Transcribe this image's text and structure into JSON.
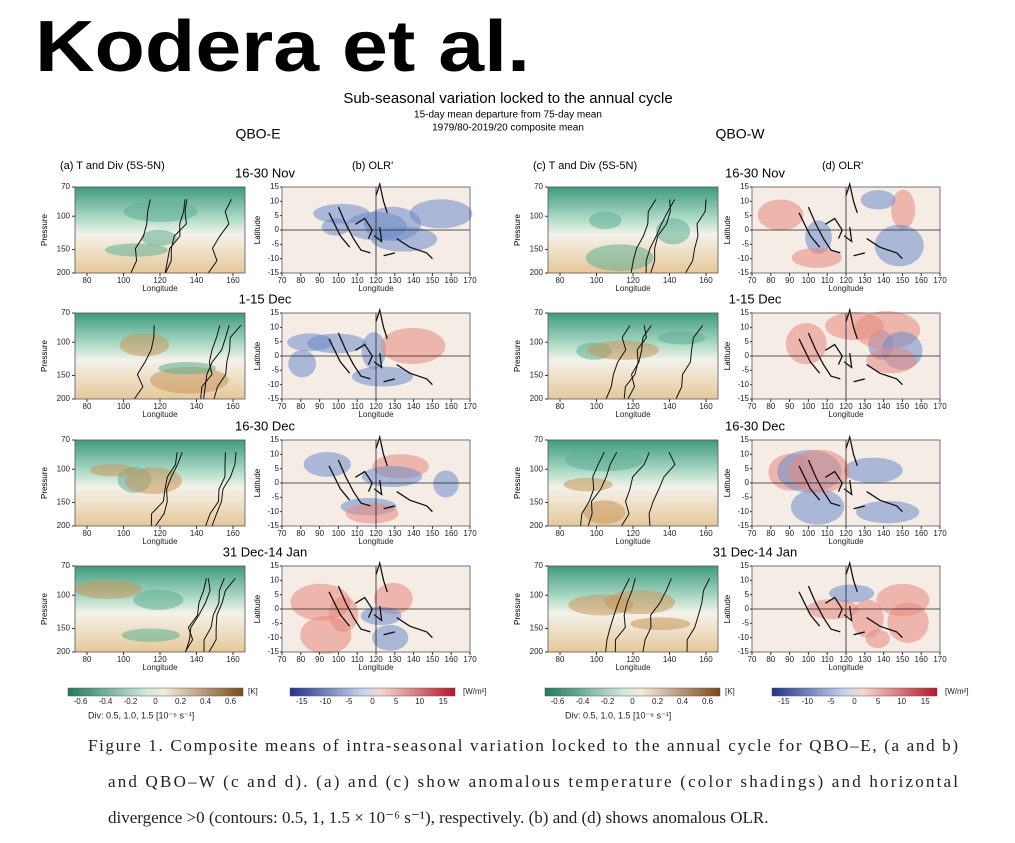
{
  "heading": "Kodera et al.",
  "figure": {
    "title": "Sub-seasonal variation locked to the annual cycle",
    "subtitle": [
      "15-day mean departure from 75-day mean",
      "1979/80-2019/20 composite mean"
    ],
    "groups": [
      {
        "name": "QBO-E",
        "panels": [
          "(a) T and Div (5S-5N)",
          "(b) OLR'"
        ]
      },
      {
        "name": "QBO-W",
        "panels": [
          "(c) T and Div (5S-5N)",
          "(d) OLR'"
        ]
      }
    ],
    "periods": [
      "16-30 Nov",
      "1-15 Dec",
      "16-30 Dec",
      "31 Dec-14 Jan"
    ],
    "t_axis": {
      "y_label": "Pressure",
      "x_label": "Longitude",
      "yticks": [
        70,
        100,
        150,
        200
      ],
      "xticks": [
        80,
        100,
        120,
        140,
        160
      ]
    },
    "olr_axis": {
      "y_label": "Latitude",
      "x_label": "Longitude",
      "yticks": [
        15,
        10,
        5,
        0,
        -5,
        -10,
        -15
      ],
      "xticks": [
        70,
        80,
        90,
        100,
        110,
        120,
        130,
        140,
        150,
        160,
        170
      ]
    },
    "t_colorbar": {
      "ticks": [
        -0.6,
        -0.4,
        -0.2,
        0,
        0.2,
        0.4,
        0.6
      ],
      "unit": "[K]",
      "note": "Div: 0.5, 1.0, 1.5 [10⁻⁶ s⁻¹]"
    },
    "olr_colorbar": {
      "ticks": [
        -15,
        -10,
        -5,
        0,
        5,
        10,
        15
      ],
      "unit": "[W/m²]"
    }
  },
  "caption": [
    "Figure 1.   Composite means of intra-seasonal variation locked to the annual cycle for QBO–E, (a and b)",
    "and QBO–W (c and d). (a) and (c) show anomalous temperature (color shadings) and horizontal",
    "divergence >0 (contours: 0.5, 1, 1.5 × 10⁻⁶ s⁻¹), respectively. (b) and (d) shows anomalous OLR."
  ]
}
